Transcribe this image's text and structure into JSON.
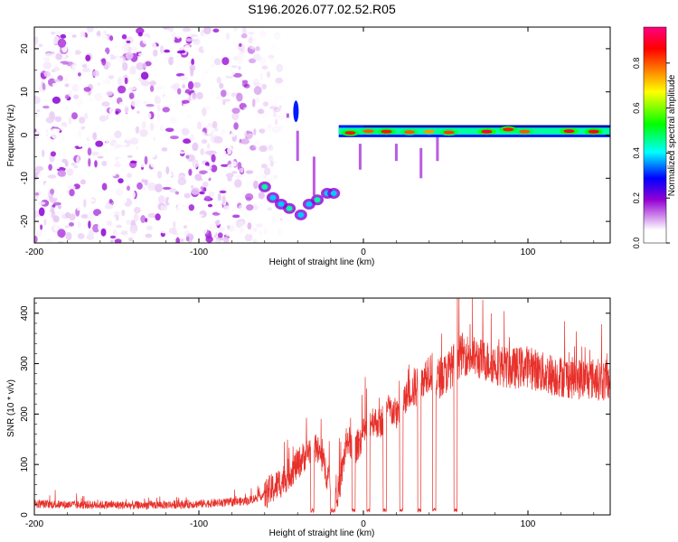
{
  "title": "S196.2026.077.02.52.R05",
  "chart_data": [
    {
      "type": "heatmap",
      "title": "S196.2026.077.02.52.R05",
      "xlabel": "Height of straight line (km)",
      "ylabel": "Frequency (Hz)",
      "xlim": [
        -200,
        150
      ],
      "ylim": [
        -25,
        25
      ],
      "xticks": [
        -200,
        -100,
        0,
        100
      ],
      "yticks": [
        -20,
        -10,
        0,
        10,
        20
      ],
      "colorbar": {
        "label": "Normalized spectral amplitude",
        "range": [
          0,
          0.96
        ],
        "ticks": [
          0.0,
          0.2,
          0.4,
          0.6,
          0.8
        ],
        "colors": [
          "#ffffff",
          "#9400d3",
          "#0000ff",
          "#00ffff",
          "#00ff00",
          "#ffff00",
          "#ff8000",
          "#ff0000",
          "#ff0080"
        ]
      },
      "regions": [
        {
          "x_range": [
            -200,
            -60
          ],
          "freq_range": [
            -25,
            25
          ],
          "pattern": "noise",
          "amplitude": 0.15
        },
        {
          "x_range": [
            -60,
            -18
          ],
          "freq_range": [
            -20,
            -12
          ],
          "pattern": "descending track",
          "amplitude": 0.4
        },
        {
          "x_range": [
            -15,
            150
          ],
          "freq_range": [
            0,
            2
          ],
          "pattern": "carrier",
          "amplitude": 0.9
        }
      ],
      "carrier_points": [
        {
          "x": -8,
          "f": 0.5,
          "a": 0.85
        },
        {
          "x": 3,
          "f": 0.9,
          "a": 0.8
        },
        {
          "x": 14,
          "f": 0.8,
          "a": 0.85
        },
        {
          "x": 28,
          "f": 0.7,
          "a": 0.8
        },
        {
          "x": 40,
          "f": 0.8,
          "a": 0.75
        },
        {
          "x": 52,
          "f": 0.6,
          "a": 0.82
        },
        {
          "x": 75,
          "f": 0.8,
          "a": 0.9
        },
        {
          "x": 88,
          "f": 1.3,
          "a": 0.85
        },
        {
          "x": 98,
          "f": 0.8,
          "a": 0.8
        },
        {
          "x": 125,
          "f": 0.9,
          "a": 0.9
        },
        {
          "x": 140,
          "f": 0.8,
          "a": 0.88
        }
      ]
    },
    {
      "type": "line",
      "xlabel": "Height of straight line (km)",
      "ylabel": "SNR (10 * v/v)",
      "xlim": [
        -200,
        150
      ],
      "ylim": [
        0,
        430
      ],
      "xticks": [
        -200,
        -100,
        0,
        100
      ],
      "yticks": [
        0,
        100,
        200,
        300,
        400
      ],
      "color": "#e8302a",
      "series": [
        {
          "x": [
            -200,
            -180,
            -160,
            -140,
            -120,
            -100,
            -80,
            -70,
            -60,
            -50,
            -40,
            -30,
            -25,
            -20,
            -15,
            -10,
            -5,
            0,
            5,
            10,
            15,
            20,
            25,
            30,
            35,
            40,
            45,
            50,
            55,
            60,
            70,
            80,
            90,
            100,
            110,
            120,
            130,
            140,
            150
          ],
          "y": [
            22,
            20,
            20,
            19,
            20,
            22,
            25,
            28,
            40,
            65,
            100,
            140,
            110,
            60,
            45,
            150,
            130,
            160,
            190,
            180,
            210,
            200,
            230,
            250,
            260,
            290,
            270,
            280,
            300,
            320,
            310,
            300,
            290,
            295,
            280,
            275,
            270,
            270,
            265
          ]
        }
      ]
    }
  ]
}
